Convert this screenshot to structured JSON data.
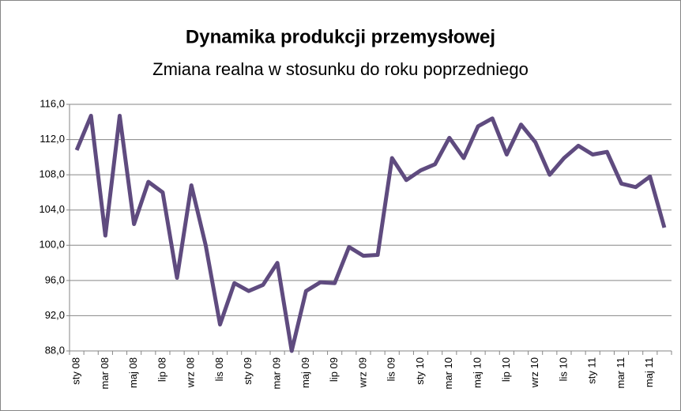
{
  "chart_data": {
    "type": "line",
    "title": "Dynamika produkcji przemysłowej",
    "subtitle": "Zmiana realna w stosunku do roku poprzedniego",
    "categories": [
      "sty 08",
      null,
      "mar 08",
      null,
      "maj 08",
      null,
      "lip 08",
      null,
      "wrz 08",
      null,
      "lis 08",
      null,
      "sty 09",
      null,
      "mar 09",
      null,
      "maj 09",
      null,
      "lip 09",
      null,
      "wrz 09",
      null,
      "lis 09",
      null,
      "sty 10",
      null,
      "mar 10",
      null,
      "maj 10",
      null,
      "lip 10",
      null,
      "wrz 10",
      null,
      "lis 10",
      null,
      "sty 11",
      null,
      "mar 11",
      null,
      "maj 11",
      null
    ],
    "series": [
      {
        "color": "#5f4b7f",
        "values": [
          110.8,
          114.7,
          101.1,
          114.7,
          102.4,
          107.2,
          106.0,
          96.3,
          106.8,
          100.0,
          91.0,
          95.7,
          94.8,
          95.5,
          98.0,
          88.0,
          94.8,
          95.8,
          95.7,
          99.8,
          98.8,
          98.9,
          109.9,
          107.4,
          108.5,
          109.2,
          112.2,
          109.9,
          113.5,
          114.4,
          110.3,
          113.7,
          111.7,
          108.0,
          109.9,
          111.3,
          110.3,
          110.6,
          107.0,
          106.6,
          107.8,
          102.0
        ]
      }
    ],
    "ylim": [
      88,
      116
    ],
    "yticks": [
      {
        "value": 88,
        "label": "88,0"
      },
      {
        "value": 92,
        "label": "92,0"
      },
      {
        "value": 96,
        "label": "96,0"
      },
      {
        "value": 100,
        "label": "100,0"
      },
      {
        "value": 104,
        "label": "104,0"
      },
      {
        "value": 108,
        "label": "108,0"
      },
      {
        "value": 112,
        "label": "112,0"
      },
      {
        "value": 116,
        "label": "116,0"
      }
    ],
    "grid": true
  }
}
